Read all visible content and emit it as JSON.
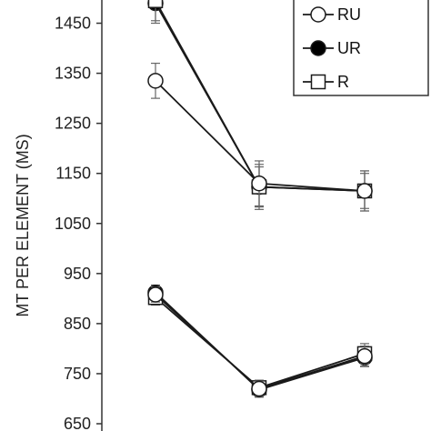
{
  "chart_data": {
    "type": "line",
    "ylabel": "MT PER ELEMENT (MS)",
    "ylim": [
      650,
      1500
    ],
    "yticks": [
      650,
      750,
      850,
      950,
      1050,
      1150,
      1250,
      1350,
      1450
    ],
    "x": [
      1,
      2,
      3
    ],
    "series": [
      {
        "name": "RU",
        "marker": "circle-open",
        "groups": [
          {
            "values": [
              1335,
              1130,
              1115
            ],
            "errors": [
              35,
              45,
              40
            ]
          },
          {
            "values": [
              908,
              720,
              785
            ],
            "errors": [
              15,
              15,
              20
            ]
          }
        ]
      },
      {
        "name": "UR",
        "marker": "circle-filled",
        "groups": [
          {
            "values": [
              1490,
              1123,
              1115
            ],
            "errors": [
              40,
              40,
              35
            ]
          },
          {
            "values": [
              912,
              718,
              782
            ],
            "errors": [
              15,
              15,
              18
            ]
          }
        ]
      },
      {
        "name": "R",
        "marker": "square-open",
        "groups": [
          {
            "values": [
              1495,
              1123,
              1115
            ],
            "errors": [
              40,
              45,
              40
            ]
          },
          {
            "values": [
              902,
              722,
              790
            ],
            "errors": [
              15,
              15,
              20
            ]
          }
        ]
      }
    ],
    "legend": "top-right",
    "colors": {
      "line": "#1a1a1a",
      "marker_fill_open": "#ffffff",
      "marker_fill_solid": "#000000"
    }
  }
}
